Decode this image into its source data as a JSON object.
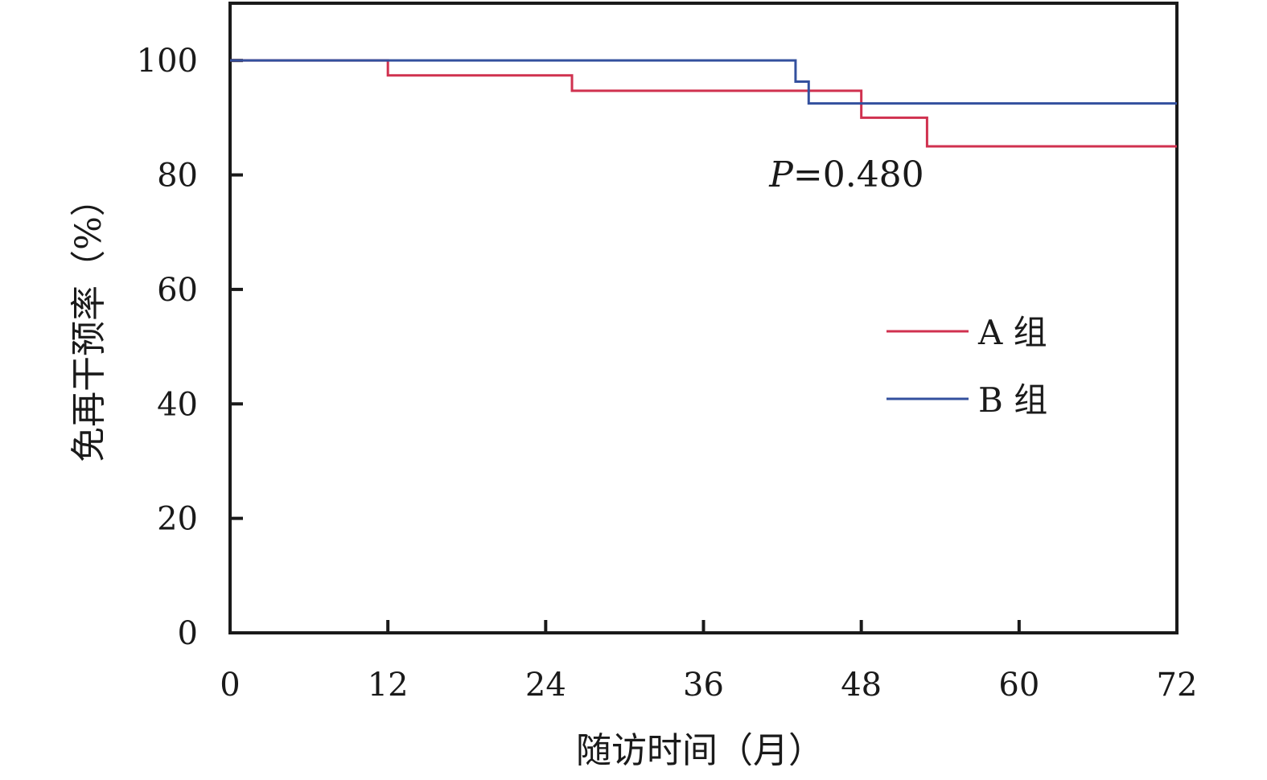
{
  "chart_data": {
    "type": "line",
    "step": true,
    "xlabel": "随访时间（月）",
    "ylabel": "免再干预率（%）",
    "xlim": [
      0,
      72
    ],
    "ylim": [
      0,
      110
    ],
    "xticks": [
      0,
      12,
      24,
      36,
      48,
      60,
      72
    ],
    "yticks": [
      0,
      20,
      40,
      60,
      80,
      100
    ],
    "grid": false,
    "legend_position": "center-right",
    "annotation": {
      "italic": "P",
      "text": "=0.480",
      "x": 41,
      "y": 78
    },
    "series": [
      {
        "name": "A 组",
        "color": "#d0314f",
        "x": [
          0,
          12,
          12,
          26,
          26,
          48,
          48,
          53,
          53,
          72
        ],
        "y": [
          100,
          100,
          97.4,
          97.4,
          94.7,
          94.7,
          90,
          90,
          85,
          85
        ]
      },
      {
        "name": "B 组",
        "color": "#33509e",
        "x": [
          0,
          43,
          43,
          44,
          44,
          72
        ],
        "y": [
          100,
          100,
          96.3,
          96.3,
          92.5,
          92.5
        ]
      }
    ]
  }
}
